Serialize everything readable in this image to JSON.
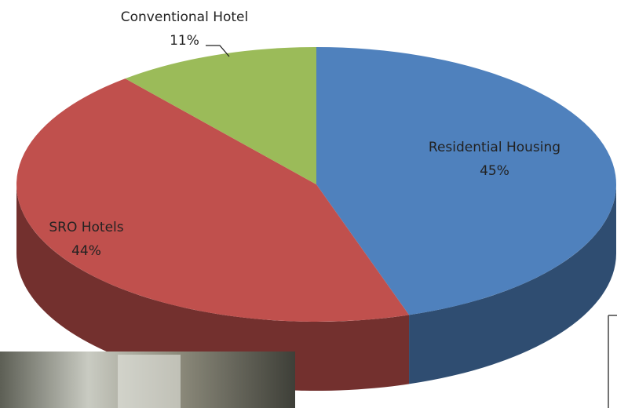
{
  "chart_data": {
    "type": "pie",
    "categories": [
      "Residential Housing",
      "SRO Hotels",
      "Conventional Hotel"
    ],
    "values": [
      45,
      44,
      11
    ],
    "value_labels": [
      "45%",
      "44%",
      "11%"
    ],
    "colors": [
      "#4f81bd",
      "#c0504d",
      "#9bbb59"
    ]
  }
}
